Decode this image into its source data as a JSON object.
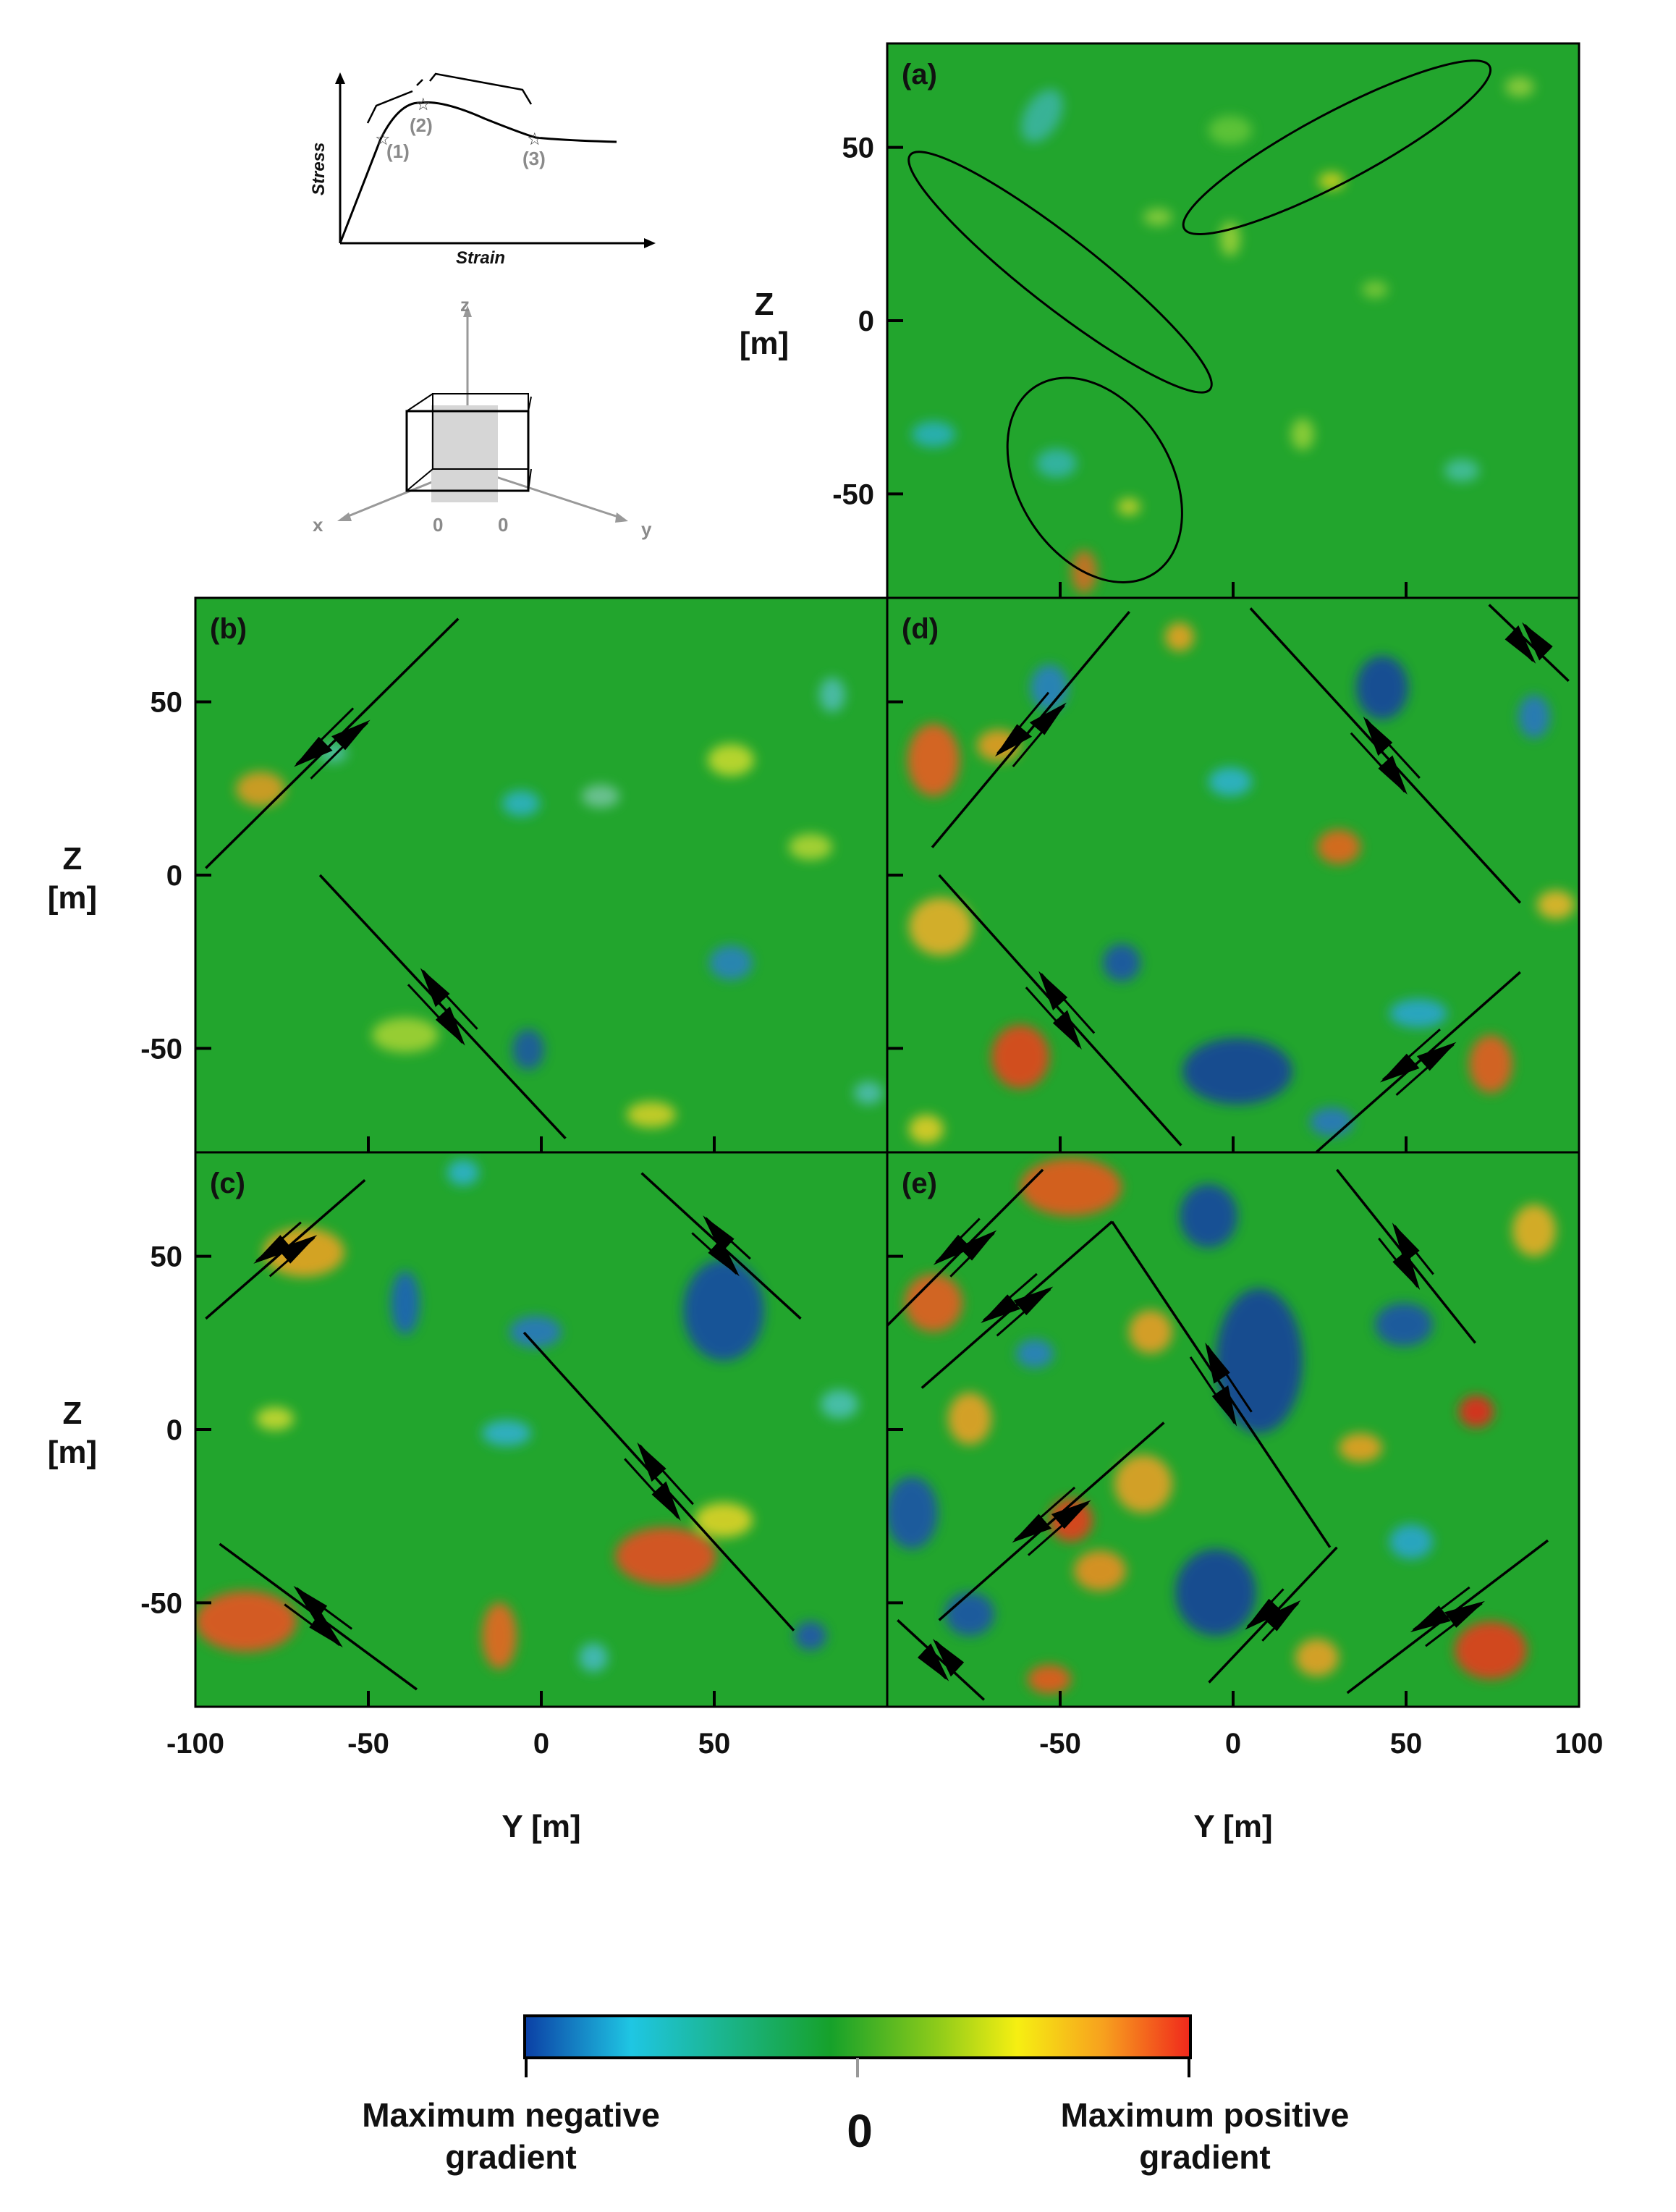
{
  "chart_data": [
    {
      "type": "heatmap",
      "panel": "(a)",
      "xlim": [
        -100,
        100
      ],
      "ylim": [
        -80,
        80
      ],
      "ylabel": [
        "Z",
        "[m]"
      ],
      "yticks": [
        50,
        0,
        -50
      ],
      "xlabel": "",
      "xticks": [],
      "annotations": "three black ellipses outlining elongated gradient zones",
      "ellipses": [
        {
          "cx": 30,
          "cy": 50,
          "rx": 50,
          "ry": 10,
          "angle_deg": -28
        },
        {
          "cx": -50,
          "cy": 14,
          "rx": 55,
          "ry": 10,
          "angle_deg": 38
        },
        {
          "cx": -40,
          "cy": -46,
          "rx": 32,
          "ry": 22,
          "angle_deg": 58
        }
      ]
    },
    {
      "type": "heatmap",
      "panel": "(b)",
      "xlim": [
        -100,
        100
      ],
      "ylim": [
        -80,
        80
      ],
      "ylabel": [
        "Z",
        "[m]"
      ],
      "yticks": [
        50,
        0,
        -50
      ],
      "lines": [
        {
          "from": [
            -97,
            2
          ],
          "to": [
            -24,
            74
          ]
        },
        {
          "from": [
            -64,
            0
          ],
          "to": [
            7,
            -76
          ]
        }
      ]
    },
    {
      "type": "heatmap",
      "panel": "(c)",
      "xlim": [
        -100,
        100
      ],
      "ylim": [
        -80,
        80
      ],
      "ylabel": [
        "Z",
        "[m]"
      ],
      "yticks": [
        50,
        0,
        -50
      ],
      "xlabel": "Y [m]",
      "xticks": [
        -100,
        -50,
        0,
        50
      ],
      "lines": [
        {
          "from": [
            -97,
            32
          ],
          "to": [
            -51,
            72
          ]
        },
        {
          "from": [
            29,
            74
          ],
          "to": [
            75,
            32
          ]
        },
        {
          "from": [
            -5,
            28
          ],
          "to": [
            73,
            -58
          ]
        },
        {
          "from": [
            -93,
            -33
          ],
          "to": [
            -36,
            -75
          ]
        }
      ]
    },
    {
      "type": "heatmap",
      "panel": "(d)",
      "xlim": [
        -100,
        100
      ],
      "ylim": [
        -80,
        80
      ],
      "yticks": [],
      "lines": [
        {
          "from": [
            -87,
            8
          ],
          "to": [
            -30,
            76
          ]
        },
        {
          "from": [
            5,
            77
          ],
          "to": [
            83,
            -8
          ]
        },
        {
          "from": [
            -85,
            0
          ],
          "to": [
            -15,
            -78
          ]
        },
        {
          "from": [
            24,
            -80
          ],
          "to": [
            83,
            -28
          ]
        },
        {
          "from": [
            74,
            78
          ],
          "to": [
            97,
            56
          ]
        }
      ]
    },
    {
      "type": "heatmap",
      "panel": "(e)",
      "xlim": [
        -100,
        100
      ],
      "ylim": [
        -80,
        80
      ],
      "yticks": [],
      "xlabel": "Y [m]",
      "xticks": [
        -50,
        0,
        50,
        100
      ],
      "lines": [
        {
          "from": [
            -100,
            30
          ],
          "to": [
            -55,
            75
          ]
        },
        {
          "from": [
            -90,
            12
          ],
          "to": [
            -35,
            60
          ]
        },
        {
          "from": [
            -35,
            60
          ],
          "to": [
            28,
            -34
          ]
        },
        {
          "from": [
            30,
            75
          ],
          "to": [
            70,
            25
          ]
        },
        {
          "from": [
            -85,
            -55
          ],
          "to": [
            -20,
            2
          ]
        },
        {
          "from": [
            -7,
            -73
          ],
          "to": [
            30,
            -34
          ]
        },
        {
          "from": [
            33,
            -76
          ],
          "to": [
            91,
            -32
          ]
        },
        {
          "from": [
            -97,
            -55
          ],
          "to": [
            -72,
            -78
          ]
        }
      ]
    }
  ],
  "inset": {
    "stress_label": "Stress",
    "strain_label": "Strain",
    "points": [
      "(1)",
      "(2)",
      "(3)"
    ],
    "axes": {
      "x": "x",
      "y": "y",
      "z": "z",
      "zero_a": "0",
      "zero_b": "0"
    }
  },
  "colorbar": {
    "colors": [
      "#0b3fa5",
      "#1fc6e3",
      "#16a12a",
      "#8ecb1a",
      "#f6ef12",
      "#f7a01e",
      "#f0281c"
    ],
    "left_label_line1": "Maximum negative",
    "left_label_line2": "gradient",
    "center_label": "0",
    "right_label_line1": "Maximum positive",
    "right_label_line2": "gradient"
  }
}
